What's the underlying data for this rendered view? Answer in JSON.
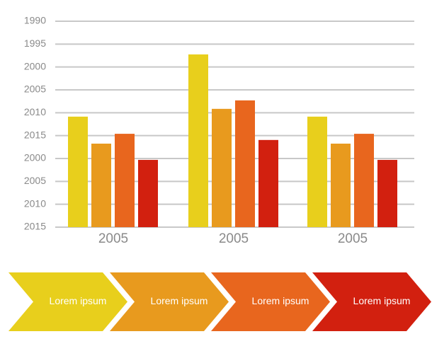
{
  "chart_data": {
    "type": "bar",
    "categories": [
      "2005",
      "2005",
      "2005"
    ],
    "series": [
      {
        "color": "#e8cf1c",
        "values": [
          4.83,
          7.55,
          4.83
        ]
      },
      {
        "color": "#e89a1e",
        "values": [
          3.65,
          5.17,
          3.65
        ]
      },
      {
        "color": "#e8661e",
        "values": [
          4.08,
          5.54,
          4.08
        ]
      },
      {
        "color": "#d2200f",
        "values": [
          2.94,
          3.81,
          2.94
        ]
      }
    ],
    "ylim": [
      0,
      9
    ],
    "yticks": [
      {
        "value": 0,
        "label": "2015"
      },
      {
        "value": 1,
        "label": "2010"
      },
      {
        "value": 2,
        "label": "2005"
      },
      {
        "value": 3,
        "label": "2000"
      },
      {
        "value": 4,
        "label": "2015"
      },
      {
        "value": 5,
        "label": "2010"
      },
      {
        "value": 6,
        "label": "2005"
      },
      {
        "value": 7,
        "label": "2000"
      },
      {
        "value": 8,
        "label": "1995"
      },
      {
        "value": 9,
        "label": "1990"
      }
    ],
    "grid": true
  },
  "process": {
    "steps": [
      {
        "label": "Lorem ipsum",
        "color": "#e8cf1c"
      },
      {
        "label": "Lorem ipsum",
        "color": "#e89a1e"
      },
      {
        "label": "Lorem ipsum",
        "color": "#e8661e"
      },
      {
        "label": "Lorem ipsum",
        "color": "#d2200f"
      }
    ]
  }
}
